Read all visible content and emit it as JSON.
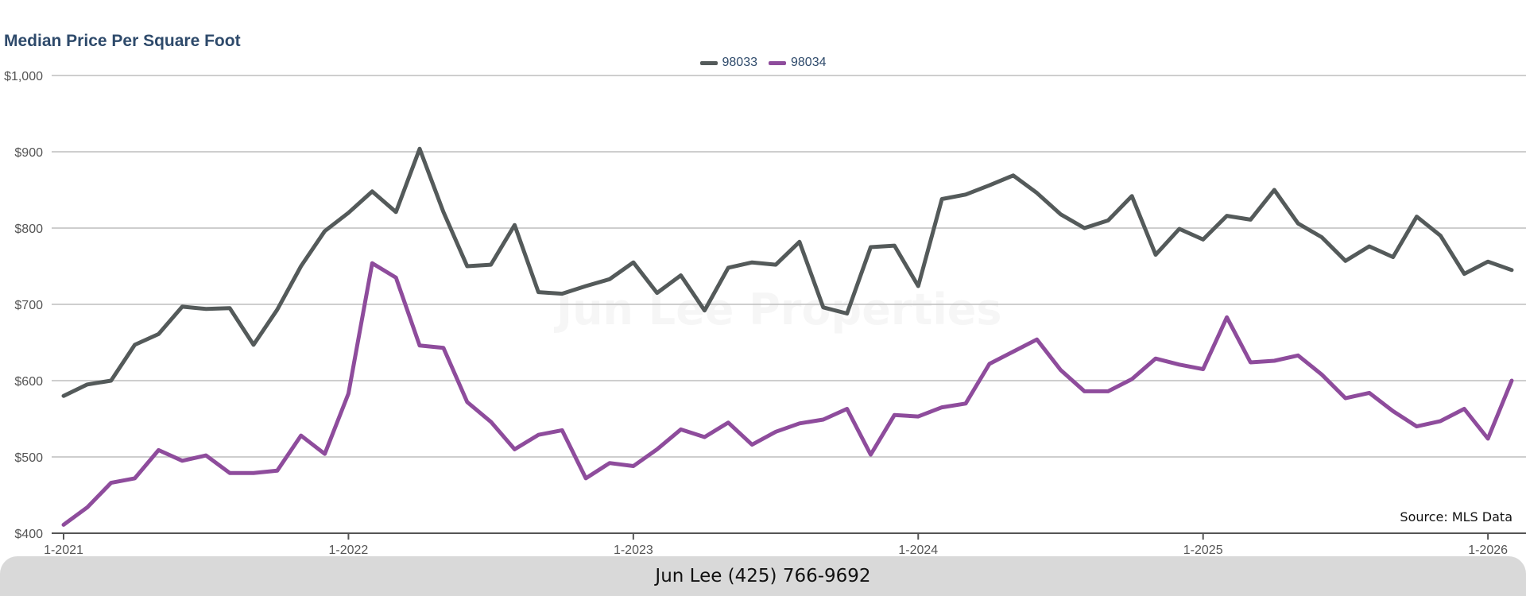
{
  "title": "Median Price Per Square Foot",
  "watermark": "Jun Lee Properties",
  "source": "Source: MLS Data",
  "footer": "Jun Lee (425) 766-9692",
  "colors": {
    "98033": "#545a5a",
    "98034": "#8e4c9c",
    "title": "#2e4a6b",
    "grid": "#bdbdbd"
  },
  "chart_data": {
    "type": "line",
    "title": "Median Price Per Square Foot",
    "xlabel": "",
    "ylabel": "",
    "ylim": [
      400,
      1000
    ],
    "yticks": [
      "$1,000",
      "$900",
      "$800",
      "$700",
      "$600",
      "$500",
      "$400"
    ],
    "ytick_values": [
      1000,
      900,
      800,
      700,
      600,
      500,
      400
    ],
    "xticks": [
      "1-2021",
      "1-2022",
      "1-2023",
      "1-2024",
      "1-2025",
      "1-2026"
    ],
    "xtick_months": [
      "2021-01",
      "2022-01",
      "2023-01",
      "2024-01",
      "2025-01",
      "2026-01"
    ],
    "legend": "top-center",
    "grid": true,
    "x": [
      "2021-01",
      "2021-02",
      "2021-03",
      "2021-04",
      "2021-05",
      "2021-06",
      "2021-07",
      "2021-08",
      "2021-09",
      "2021-10",
      "2021-11",
      "2021-12",
      "2022-01",
      "2022-02",
      "2022-03",
      "2022-04",
      "2022-05",
      "2022-06",
      "2022-07",
      "2022-08",
      "2022-09",
      "2022-10",
      "2022-11",
      "2022-12",
      "2023-01",
      "2023-02",
      "2023-03",
      "2023-04",
      "2023-05",
      "2023-06",
      "2023-07",
      "2023-08",
      "2023-09",
      "2023-10",
      "2023-11",
      "2023-12",
      "2024-01",
      "2024-02",
      "2024-03",
      "2024-04",
      "2024-05",
      "2024-06",
      "2024-07",
      "2024-08",
      "2024-09",
      "2024-10",
      "2024-11",
      "2024-12",
      "2025-01",
      "2025-02",
      "2025-03",
      "2025-04",
      "2025-05",
      "2025-06",
      "2025-07",
      "2025-08",
      "2025-09",
      "2025-10",
      "2025-11",
      "2025-12",
      "2026-01",
      "2026-02"
    ],
    "series": [
      {
        "name": "98033",
        "color": "#545a5a",
        "values": [
          580,
          595,
          600,
          647,
          661,
          697,
          694,
          695,
          647,
          693,
          750,
          796,
          820,
          848,
          821,
          904,
          821,
          750,
          752,
          804,
          716,
          714,
          724,
          733,
          755,
          715,
          738,
          692,
          748,
          755,
          752,
          782,
          696,
          688,
          775,
          777,
          724,
          838,
          844,
          856,
          869,
          846,
          818,
          800,
          810,
          842,
          765,
          799,
          785,
          816,
          811,
          850,
          806,
          788,
          757,
          776,
          762,
          815,
          790,
          740,
          756,
          745
        ]
      },
      {
        "name": "98034",
        "color": "#8e4c9c",
        "values": [
          411,
          434,
          466,
          472,
          509,
          495,
          502,
          479,
          479,
          482,
          528,
          504,
          583,
          754,
          735,
          646,
          643,
          572,
          546,
          510,
          529,
          535,
          472,
          492,
          488,
          510,
          536,
          526,
          545,
          516,
          533,
          544,
          549,
          563,
          503,
          555,
          553,
          565,
          570,
          622,
          638,
          654,
          614,
          586,
          586,
          602,
          629,
          621,
          615,
          683,
          624,
          626,
          633,
          608,
          577,
          584,
          560,
          540,
          547,
          563,
          524,
          600
        ]
      }
    ]
  }
}
